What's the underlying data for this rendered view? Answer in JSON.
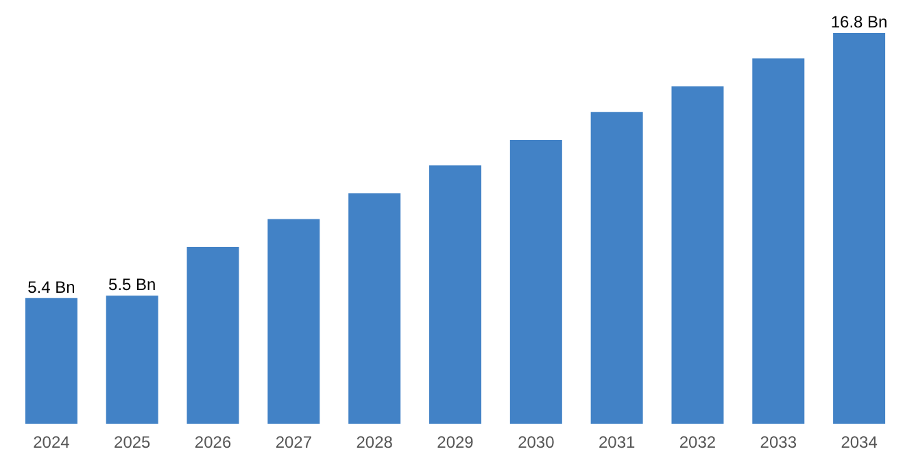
{
  "chart_data": {
    "type": "bar",
    "categories": [
      "2024",
      "2025",
      "2026",
      "2027",
      "2028",
      "2029",
      "2030",
      "2031",
      "2032",
      "2033",
      "2034"
    ],
    "values": [
      5.4,
      5.5,
      7.6,
      8.8,
      9.9,
      11.1,
      12.2,
      13.4,
      14.5,
      15.7,
      16.8
    ],
    "value_labels": [
      "5.4 Bn",
      "5.5 Bn",
      null,
      null,
      null,
      null,
      null,
      null,
      null,
      null,
      "16.8 Bn"
    ],
    "color": "#4282c6",
    "grid": false
  }
}
